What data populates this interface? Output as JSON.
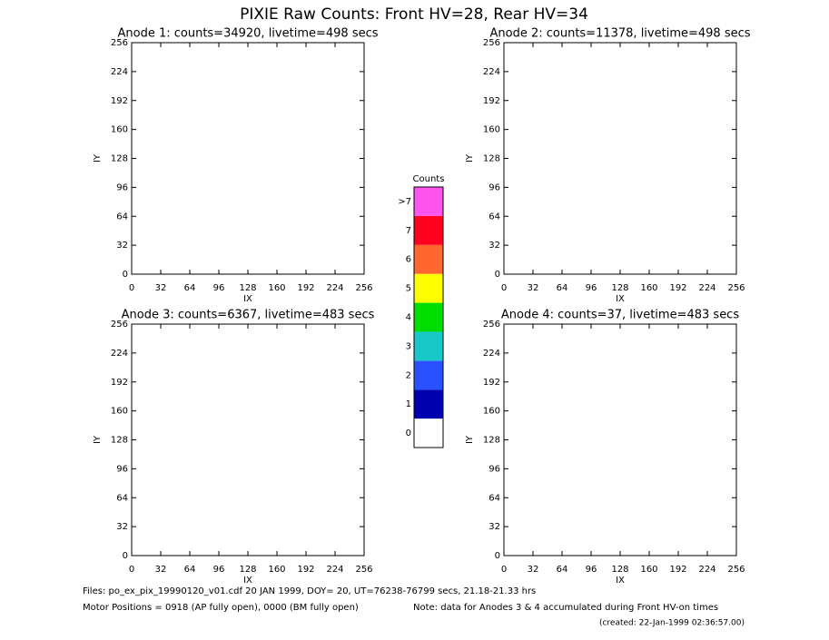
{
  "title": "PIXIE Raw Counts:  Front HV=28, Rear HV=34",
  "panels": [
    {
      "title": "Anode 1: counts=34920, livetime=498 secs",
      "xlabel": "IX",
      "ylabel": "IY",
      "xlim": [
        0,
        256
      ],
      "ylim": [
        0,
        256
      ],
      "xticks": [
        0,
        32,
        64,
        96,
        128,
        160,
        192,
        224,
        256
      ],
      "yticks": [
        0,
        32,
        64,
        96,
        128,
        160,
        192,
        224,
        256
      ]
    },
    {
      "title": "Anode 2: counts=11378, livetime=498 secs",
      "xlabel": "IX",
      "ylabel": "IY",
      "xlim": [
        0,
        256
      ],
      "ylim": [
        0,
        256
      ],
      "xticks": [
        0,
        32,
        64,
        96,
        128,
        160,
        192,
        224,
        256
      ],
      "yticks": [
        0,
        32,
        64,
        96,
        128,
        160,
        192,
        224,
        256
      ]
    },
    {
      "title": "Anode 3: counts=6367, livetime=483 secs",
      "xlabel": "IX",
      "ylabel": "IY",
      "xlim": [
        0,
        256
      ],
      "ylim": [
        0,
        256
      ],
      "xticks": [
        0,
        32,
        64,
        96,
        128,
        160,
        192,
        224,
        256
      ],
      "yticks": [
        0,
        32,
        64,
        96,
        128,
        160,
        192,
        224,
        256
      ]
    },
    {
      "title": "Anode 4: counts=37, livetime=483 secs",
      "xlabel": "IX",
      "ylabel": "IY",
      "xlim": [
        0,
        256
      ],
      "ylim": [
        0,
        256
      ],
      "xticks": [
        0,
        32,
        64,
        96,
        128,
        160,
        192,
        224,
        256
      ],
      "yticks": [
        0,
        32,
        64,
        96,
        128,
        160,
        192,
        224,
        256
      ]
    }
  ],
  "colorbar": {
    "title": "Counts",
    "levels": [
      {
        "label": "0",
        "color": "#ffffff"
      },
      {
        "label": "1",
        "color": "#0000b0"
      },
      {
        "label": "2",
        "color": "#2850ff"
      },
      {
        "label": "3",
        "color": "#18c8c8"
      },
      {
        "label": "4",
        "color": "#00dd00"
      },
      {
        "label": "5",
        "color": "#ffff00"
      },
      {
        "label": "6",
        "color": "#ff6630"
      },
      {
        "label": "7",
        "color": "#ff0020"
      },
      {
        "label": ">7",
        "color": "#ff55ee"
      }
    ]
  },
  "footer": {
    "files": "Files: po_ex_pix_19990120_v01.cdf    20 JAN 1999, DOY= 20, UT=76238-76799 secs, 21.18-21.33 hrs",
    "motor": "Motor Positions = 0918 (AP fully open), 0000 (BM fully open)",
    "note": "Note: data for Anodes 3 & 4 accumulated during Front HV-on times",
    "created": "(created: 22-Jan-1999 02:36:57.00)"
  }
}
